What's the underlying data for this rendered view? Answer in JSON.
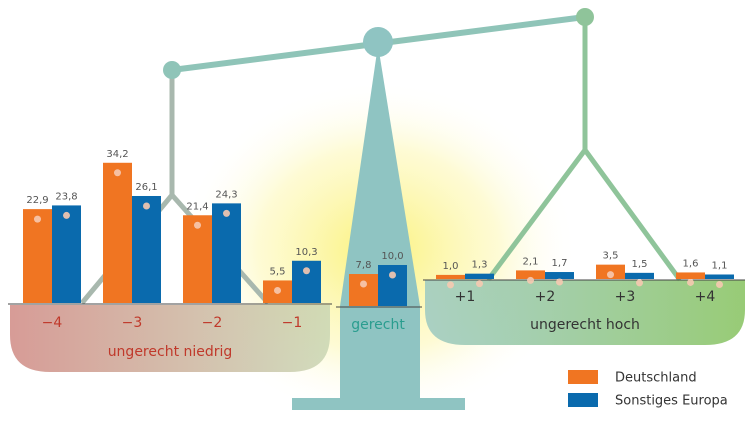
{
  "chart_data": {
    "type": "bar",
    "categories": [
      "−4",
      "−3",
      "−2",
      "−1",
      "gerecht",
      "+1",
      "+2",
      "+3",
      "+4"
    ],
    "group_labels": [
      "ungerecht niedrig",
      "ungerecht hoch"
    ],
    "series": [
      {
        "name": "Deutschland",
        "color": "#f07522",
        "values": [
          22.9,
          34.2,
          21.4,
          5.5,
          7.8,
          1.0,
          2.1,
          3.5,
          1.6
        ],
        "value_labels": [
          "22,9",
          "34,2",
          "21,4",
          "5,5",
          "7,8",
          "1,0",
          "2,1",
          "3,5",
          "1,6"
        ]
      },
      {
        "name": "Sonstiges Europa",
        "color": "#0a6aad",
        "values": [
          23.8,
          26.1,
          24.3,
          10.3,
          10.0,
          1.3,
          1.7,
          1.5,
          1.1
        ],
        "value_labels": [
          "23,8",
          "26,1",
          "24,3",
          "10,3",
          "10,0",
          "1,3",
          "1,7",
          "1,5",
          "1,1"
        ]
      }
    ]
  }
}
